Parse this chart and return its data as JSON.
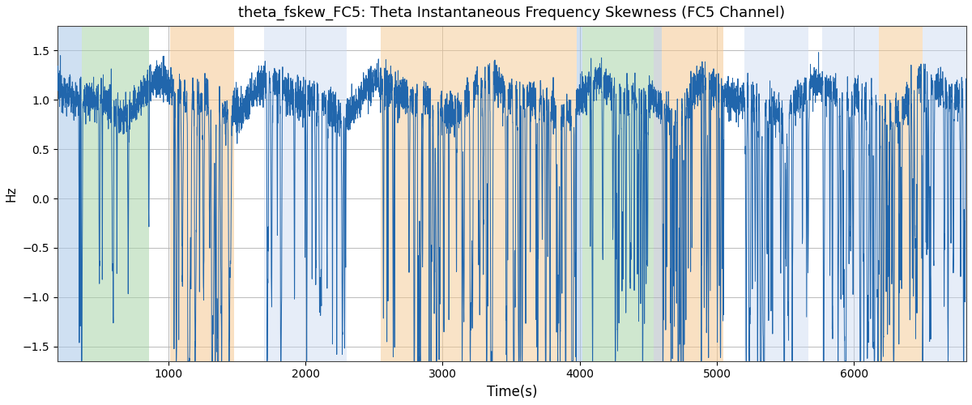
{
  "title": "theta_fskew_FC5: Theta Instantaneous Frequency Skewness (FC5 Channel)",
  "xlabel": "Time(s)",
  "ylabel": "Hz",
  "xlim": [
    190,
    6820
  ],
  "ylim": [
    -1.65,
    1.75
  ],
  "line_color": "#2166ac",
  "line_width": 0.7,
  "background_color": "#ffffff",
  "grid_color": "#b0b0b0",
  "bands": [
    {
      "xmin": 190,
      "xmax": 370,
      "color": "#a8c8e8",
      "alpha": 0.55
    },
    {
      "xmin": 370,
      "xmax": 860,
      "color": "#a8d4a8",
      "alpha": 0.55
    },
    {
      "xmin": 860,
      "xmax": 1010,
      "color": "#f0f0f0",
      "alpha": 0.0
    },
    {
      "xmin": 1010,
      "xmax": 1480,
      "color": "#f5c890",
      "alpha": 0.55
    },
    {
      "xmin": 1480,
      "xmax": 1700,
      "color": "#f0f0f0",
      "alpha": 0.0
    },
    {
      "xmin": 1700,
      "xmax": 2300,
      "color": "#c8d8f0",
      "alpha": 0.45
    },
    {
      "xmin": 2300,
      "xmax": 2550,
      "color": "#f0f0f0",
      "alpha": 0.0
    },
    {
      "xmin": 2550,
      "xmax": 3130,
      "color": "#f5c890",
      "alpha": 0.5
    },
    {
      "xmin": 3130,
      "xmax": 3980,
      "color": "#f5c890",
      "alpha": 0.5
    },
    {
      "xmin": 3980,
      "xmax": 4020,
      "color": "#a8c8e8",
      "alpha": 0.55
    },
    {
      "xmin": 4020,
      "xmax": 4540,
      "color": "#a8d4a8",
      "alpha": 0.55
    },
    {
      "xmin": 4540,
      "xmax": 4600,
      "color": "#b0b8c0",
      "alpha": 0.55
    },
    {
      "xmin": 4600,
      "xmax": 5050,
      "color": "#f5c890",
      "alpha": 0.55
    },
    {
      "xmin": 5050,
      "xmax": 5200,
      "color": "#f0f0f0",
      "alpha": 0.0
    },
    {
      "xmin": 5200,
      "xmax": 5670,
      "color": "#c8d8f0",
      "alpha": 0.45
    },
    {
      "xmin": 5670,
      "xmax": 5770,
      "color": "#f0f0f0",
      "alpha": 0.0
    },
    {
      "xmin": 5770,
      "xmax": 6180,
      "color": "#c8d8f0",
      "alpha": 0.45
    },
    {
      "xmin": 6180,
      "xmax": 6500,
      "color": "#f5c890",
      "alpha": 0.5
    },
    {
      "xmin": 6500,
      "xmax": 6820,
      "color": "#c8d8f0",
      "alpha": 0.45
    }
  ],
  "yticks": [
    -1.5,
    -1.0,
    -0.5,
    0.0,
    0.5,
    1.0,
    1.5
  ],
  "xticks": [
    1000,
    2000,
    3000,
    4000,
    5000,
    6000
  ],
  "seed": 12345,
  "n_points": 6600
}
